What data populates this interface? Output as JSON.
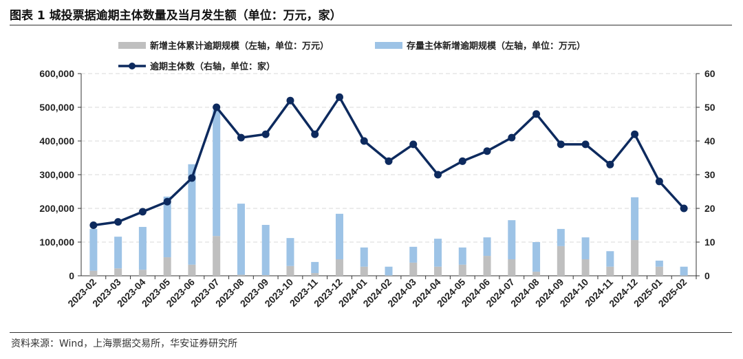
{
  "title": "图表 1  城投票据逾期主体数量及当月发生额（单位：万元，家）",
  "source": "资料来源：Wind，上海票据交易所，华安证券研究所",
  "chart_data": {
    "type": "bar+line",
    "categories": [
      "2023-02",
      "2023-03",
      "2023-04",
      "2023-05",
      "2023-06",
      "2023-07",
      "2023-08",
      "2023-09",
      "2023-10",
      "2023-11",
      "2023-12",
      "2024-01",
      "2024-02",
      "2024-03",
      "2024-04",
      "2024-05",
      "2024-06",
      "2024-07",
      "2024-08",
      "2024-09",
      "2024-10",
      "2024-11",
      "2024-12",
      "2025-01",
      "2025-02"
    ],
    "series": [
      {
        "name": "新增主体累计逾期规模（左轴，单位：万元）",
        "type": "stacked-bar",
        "axis": "left",
        "color": "#bfbfbf",
        "values": [
          15000,
          22000,
          18000,
          55000,
          33000,
          118000,
          3000,
          2000,
          29000,
          8000,
          49000,
          27000,
          1000,
          39000,
          27000,
          33000,
          59000,
          49000,
          12000,
          88000,
          49000,
          27000,
          106000,
          27000,
          1000
        ]
      },
      {
        "name": "存量主体新增逾期规模（左轴，单位：万元）",
        "type": "stacked-bar",
        "axis": "left",
        "color": "#9dc3e6",
        "values": [
          124000,
          94000,
          127000,
          180000,
          298000,
          374000,
          211000,
          149000,
          83000,
          33000,
          135000,
          57000,
          26000,
          47000,
          83000,
          51000,
          55000,
          116000,
          88000,
          51000,
          65000,
          46000,
          127000,
          18000,
          26000
        ]
      },
      {
        "name": "逾期主体数（右轴，单位：家）",
        "type": "line",
        "axis": "right",
        "color": "#0d2a5e",
        "values": [
          15,
          16,
          19,
          22,
          29,
          50,
          41,
          42,
          52,
          42,
          53,
          40,
          34,
          39,
          30,
          34,
          37,
          41,
          48,
          39,
          39,
          33,
          42,
          28,
          20
        ]
      }
    ],
    "left_axis": {
      "ylim": [
        0,
        600000
      ],
      "ticks": [
        "0",
        "100,000",
        "200,000",
        "300,000",
        "400,000",
        "500,000",
        "600,000"
      ]
    },
    "right_axis": {
      "ylim": [
        0,
        60
      ],
      "ticks": [
        "0",
        "10",
        "20",
        "30",
        "40",
        "50",
        "60"
      ]
    },
    "grid": "horizontal-dashed",
    "legend": "top"
  }
}
